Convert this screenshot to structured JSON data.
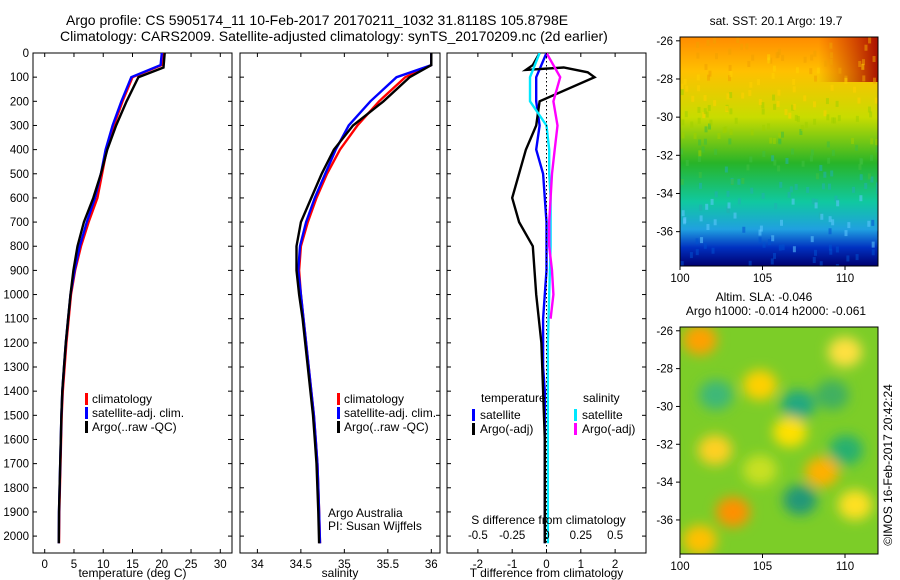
{
  "header": {
    "line1": "Argo profile: CS 5905174_11 10-Feb-2017 20170211_1032 31.8118S 105.8798E",
    "line2": "Climatology: CARS2009. Satellite-adjusted climatology: synTS_20170209.nc (2d earlier)"
  },
  "colors": {
    "climatology": "#ff0000",
    "satellite": "#0000ff",
    "argo": "#000000",
    "satellite_s": "#00ffff",
    "argo_s": "#ff00ff"
  },
  "depth_ticks": [
    "0",
    "100",
    "200",
    "300",
    "400",
    "500",
    "600",
    "700",
    "800",
    "900",
    "1000",
    "1100",
    "1200",
    "1300",
    "1400",
    "1500",
    "1600",
    "1700",
    "1800",
    "1900",
    "2000"
  ],
  "chart_data": [
    {
      "type": "line",
      "xlabel": "temperature (deg C)",
      "xlim": [
        -2,
        32
      ],
      "ylim": [
        2070,
        0
      ],
      "xticks": [
        "0",
        "5",
        "10",
        "15",
        "20",
        "25",
        "30"
      ],
      "legend": [
        "climatology",
        "satellite-adj. clim.",
        "Argo(..raw -QC)"
      ],
      "series": [
        {
          "name": "climatology",
          "color": "red",
          "x": [
            20.2,
            20.0,
            15.0,
            13.3,
            11.8,
            10.6,
            9.8,
            9.0,
            7.5,
            6.2,
            5.2,
            4.5,
            4.1,
            3.7,
            3.4,
            3.1,
            2.9,
            2.8,
            2.7,
            2.6,
            2.5,
            2.45
          ],
          "y": [
            0,
            50,
            100,
            200,
            300,
            400,
            500,
            600,
            700,
            800,
            900,
            1000,
            1100,
            1200,
            1300,
            1400,
            1500,
            1600,
            1700,
            1800,
            1900,
            2030
          ]
        },
        {
          "name": "satellite-adj. clim.",
          "color": "blue",
          "x": [
            20.0,
            19.8,
            14.8,
            13.1,
            11.6,
            10.4,
            9.6,
            8.6,
            7.2,
            6.0,
            5.1,
            4.4,
            4.0,
            3.6,
            3.3,
            3.0,
            2.85,
            2.75,
            2.65,
            2.55,
            2.45,
            2.4
          ],
          "y": [
            0,
            50,
            100,
            200,
            300,
            400,
            500,
            600,
            700,
            800,
            900,
            1000,
            1100,
            1200,
            1300,
            1400,
            1500,
            1600,
            1700,
            1800,
            1900,
            2030
          ]
        },
        {
          "name": "Argo(..raw -QC)",
          "color": "black",
          "x": [
            20.5,
            20.3,
            16.0,
            14.0,
            12.2,
            10.7,
            9.6,
            8.3,
            6.7,
            5.6,
            4.9,
            4.4,
            4.0,
            3.6,
            3.3,
            3.0,
            2.85,
            2.75,
            2.65,
            2.55,
            2.45,
            2.4
          ],
          "y": [
            0,
            60,
            100,
            200,
            300,
            400,
            500,
            600,
            700,
            800,
            900,
            1000,
            1100,
            1200,
            1300,
            1400,
            1500,
            1600,
            1700,
            1800,
            1900,
            2030
          ]
        }
      ]
    },
    {
      "type": "line",
      "xlabel": "salinity",
      "xlim": [
        33.8,
        36.1
      ],
      "ylim": [
        2070,
        0
      ],
      "xticks": [
        "34",
        "34.5",
        "35",
        "35.5",
        "36"
      ],
      "legend": [
        "climatology",
        "satellite-adj. clim.",
        "Argo(..raw -QC)"
      ],
      "annotation": [
        "Argo Australia",
        "PI: Susan Wijffels"
      ],
      "series": [
        {
          "name": "climatology",
          "color": "red",
          "x": [
            36.0,
            36.0,
            35.7,
            35.4,
            35.15,
            34.95,
            34.8,
            34.68,
            34.58,
            34.5,
            34.48,
            34.5,
            34.53,
            34.56,
            34.59,
            34.62,
            34.65,
            34.67,
            34.69,
            34.7,
            34.71,
            34.72
          ],
          "y": [
            0,
            50,
            100,
            200,
            300,
            400,
            500,
            600,
            700,
            800,
            900,
            1000,
            1100,
            1200,
            1300,
            1400,
            1500,
            1600,
            1700,
            1800,
            1900,
            2030
          ]
        },
        {
          "name": "satellite-adj. clim.",
          "color": "blue",
          "x": [
            36.0,
            36.0,
            35.6,
            35.3,
            35.05,
            34.9,
            34.78,
            34.66,
            34.56,
            34.49,
            34.47,
            34.5,
            34.53,
            34.56,
            34.59,
            34.62,
            34.65,
            34.67,
            34.69,
            34.7,
            34.71,
            34.72
          ],
          "y": [
            0,
            50,
            100,
            200,
            300,
            400,
            500,
            600,
            700,
            800,
            900,
            1000,
            1100,
            1200,
            1300,
            1400,
            1500,
            1600,
            1700,
            1800,
            1900,
            2030
          ]
        },
        {
          "name": "Argo(..raw -QC)",
          "color": "black",
          "x": [
            36.0,
            36.0,
            35.75,
            35.45,
            35.1,
            34.88,
            34.74,
            34.62,
            34.5,
            34.45,
            34.45,
            34.48,
            34.52,
            34.55,
            34.58,
            34.61,
            34.64,
            34.66,
            34.68,
            34.69,
            34.7,
            34.71
          ],
          "y": [
            0,
            50,
            100,
            200,
            300,
            400,
            500,
            600,
            700,
            800,
            900,
            1000,
            1100,
            1200,
            1300,
            1400,
            1500,
            1600,
            1700,
            1800,
            1900,
            2030
          ]
        }
      ]
    },
    {
      "type": "line",
      "xlabel": "T difference from climatology",
      "toplabel": "S difference from climatology",
      "xlim": [
        -2.9,
        2.9
      ],
      "ylim": [
        2070,
        0
      ],
      "xticks": [
        "-2",
        "-1",
        "0",
        "1",
        "2"
      ],
      "top_xticks": [
        "-0.5",
        "-0.25",
        "0",
        "0.25",
        "0.5"
      ],
      "legend_temperature_title": "temperature",
      "legend_salinity_title": "salinity",
      "legend": [
        "satellite",
        "Argo(-adj)",
        "satellite",
        "Argo(-adj)"
      ],
      "series": [
        {
          "name": "satellite",
          "group": "temperature",
          "color": "blue",
          "x": [
            0.0,
            -0.3,
            -0.3,
            -0.2,
            -0.3,
            -0.1,
            -0.05,
            0.0,
            0.0,
            0.0,
            -0.05,
            -0.1,
            -0.1,
            -0.1,
            -0.05,
            -0.05,
            -0.05,
            -0.05,
            -0.05,
            -0.05
          ],
          "y": [
            0,
            100,
            200,
            300,
            400,
            500,
            600,
            700,
            800,
            900,
            1000,
            1100,
            1200,
            1300,
            1400,
            1500,
            1600,
            1800,
            1900,
            2030
          ]
        },
        {
          "name": "Argo(-adj)",
          "group": "temperature",
          "color": "black",
          "x": [
            -0.2,
            -0.4,
            -0.6,
            0.5,
            1.2,
            1.4,
            -0.2,
            -0.3,
            -0.6,
            -1.0,
            -0.8,
            -0.4,
            -0.3,
            -0.15,
            -0.1,
            -0.05,
            -0.05,
            -0.05,
            -0.05
          ],
          "y": [
            0,
            50,
            70,
            60,
            80,
            100,
            200,
            300,
            400,
            600,
            700,
            800,
            1000,
            1200,
            1400,
            1600,
            1800,
            1950,
            2030
          ]
        },
        {
          "name": "satellite",
          "group": "salinity",
          "color": "cyan",
          "x": [
            -0.05,
            -0.12,
            -0.12,
            0.0,
            0.02,
            0.02,
            0.03,
            0.03,
            0.02,
            0.01,
            0.01,
            0.01,
            0.01,
            0.01
          ],
          "y": [
            0,
            100,
            200,
            300,
            400,
            500,
            600,
            800,
            1000,
            1200,
            1400,
            1600,
            1800,
            2030
          ]
        },
        {
          "name": "Argo(-adj)",
          "group": "salinity",
          "color": "magenta",
          "x": [
            0.0,
            0.1,
            0.05,
            0.08,
            0.06,
            0.04,
            0.03,
            0.02,
            0.02,
            0.04,
            0.05,
            0.03
          ],
          "y": [
            0,
            100,
            200,
            300,
            400,
            500,
            600,
            700,
            800,
            900,
            1000,
            1100
          ]
        }
      ]
    },
    {
      "type": "heatmap",
      "title": "sat. SST: 20.1  Argo: 19.7",
      "xlim": [
        100,
        112
      ],
      "ylim": [
        -37.8,
        -25.8
      ],
      "xticks": [
        "100",
        "105",
        "110"
      ],
      "yticks": [
        "-26",
        "-28",
        "-30",
        "-32",
        "-34",
        "-36"
      ]
    },
    {
      "type": "heatmap",
      "title1": "Altim. SLA: -0.046",
      "title2": "Argo h1000: -0.014  h2000: -0.061",
      "xlim": [
        100,
        112
      ],
      "ylim": [
        -37.8,
        -25.8
      ],
      "xticks": [
        "100",
        "105",
        "110"
      ],
      "yticks": [
        "-26",
        "-28",
        "-30",
        "-32",
        "-34",
        "-36"
      ]
    }
  ],
  "footer": {
    "stamp": "©IMOS 16-Feb-2017 20:42:24"
  }
}
